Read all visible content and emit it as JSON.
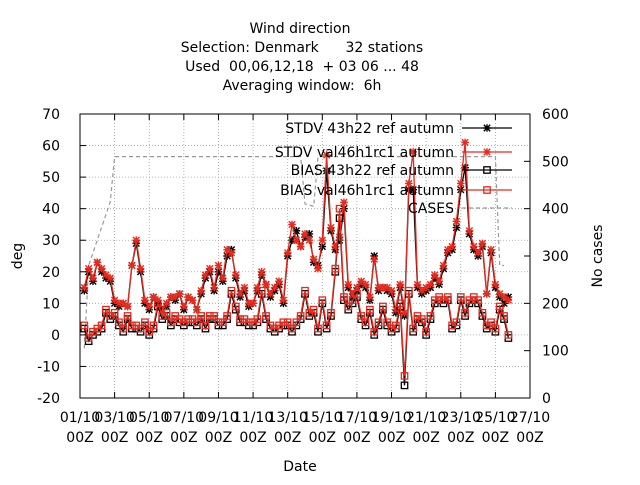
{
  "chart_data": {
    "type": "line",
    "title_lines": [
      "Wind direction",
      "Selection: Denmark      32 stations",
      "Used  00,06,12,18  + 03 06 ... 48",
      "Averaging window:  6h"
    ],
    "xlabel": "Date",
    "ylabel": "deg",
    "y2label": "No cases",
    "x_ticks": [
      {
        "day": 1,
        "line1": "01/10",
        "line2": "00Z"
      },
      {
        "day": 3,
        "line1": "03/10",
        "line2": "00Z"
      },
      {
        "day": 5,
        "line1": "05/10",
        "line2": "00Z"
      },
      {
        "day": 7,
        "line1": "07/10",
        "line2": "00Z"
      },
      {
        "day": 9,
        "line1": "09/10",
        "line2": "00Z"
      },
      {
        "day": 11,
        "line1": "11/10",
        "line2": "00Z"
      },
      {
        "day": 13,
        "line1": "13/10",
        "line2": "00Z"
      },
      {
        "day": 15,
        "line1": "15/10",
        "line2": "00Z"
      },
      {
        "day": 17,
        "line1": "17/10",
        "line2": "00Z"
      },
      {
        "day": 19,
        "line1": "19/10",
        "line2": "00Z"
      },
      {
        "day": 21,
        "line1": "21/10",
        "line2": "00Z"
      },
      {
        "day": 23,
        "line1": "23/10",
        "line2": "00Z"
      },
      {
        "day": 25,
        "line1": "25/10",
        "line2": "00Z"
      },
      {
        "day": 27,
        "line1": "27/10",
        "line2": "00Z"
      }
    ],
    "xlim": [
      1,
      27
    ],
    "ylim": [
      -20,
      70
    ],
    "y_ticks": [
      -20,
      -10,
      0,
      10,
      20,
      30,
      40,
      50,
      60,
      70
    ],
    "y2lim": [
      0,
      600
    ],
    "y2_ticks": [
      0,
      100,
      200,
      300,
      400,
      500,
      600
    ],
    "grid": true,
    "legend_position": "top-right",
    "x_days": [
      1.25,
      1.5,
      1.75,
      2,
      2.25,
      2.5,
      2.75,
      3,
      3.25,
      3.5,
      3.75,
      4,
      4.25,
      4.5,
      4.75,
      5,
      5.25,
      5.5,
      5.75,
      6,
      6.25,
      6.5,
      6.75,
      7,
      7.25,
      7.5,
      7.75,
      8,
      8.25,
      8.5,
      8.75,
      9,
      9.25,
      9.5,
      9.75,
      10,
      10.25,
      10.5,
      10.75,
      11,
      11.25,
      11.5,
      11.75,
      12,
      12.25,
      12.5,
      12.75,
      13,
      13.25,
      13.5,
      13.75,
      14,
      14.25,
      14.5,
      14.75,
      15,
      15.25,
      15.5,
      15.75,
      16,
      16.25,
      16.5,
      16.75,
      17,
      17.25,
      17.5,
      17.75,
      18,
      18.25,
      18.5,
      18.75,
      19,
      19.25,
      19.5,
      19.75,
      20,
      20.25,
      20.5,
      20.75,
      21,
      21.25,
      21.5,
      21.75,
      22,
      22.25,
      22.5,
      22.75,
      23,
      23.25,
      23.5,
      23.75,
      24,
      24.25,
      24.5,
      24.75,
      25,
      25.25,
      25.5,
      25.75
    ],
    "series": [
      {
        "name": "STDV 43h22_ref_autumn",
        "legend_text": "STDV 43h22 ref autumn",
        "axis": "y1",
        "color": "#000000",
        "marker": "star",
        "dash": "",
        "values": [
          14,
          20,
          17,
          23,
          20,
          18,
          17,
          10,
          9,
          10,
          9,
          22,
          29,
          20,
          10,
          8,
          12,
          10,
          8,
          9,
          12,
          11,
          13,
          8,
          12,
          11,
          8,
          13,
          18,
          20,
          14,
          20,
          17,
          25,
          27,
          18,
          12,
          14,
          9,
          10,
          14,
          19,
          16,
          12,
          14,
          16,
          10,
          25,
          30,
          33,
          28,
          31,
          32,
          23,
          22,
          28,
          52,
          33,
          27,
          30,
          40,
          15,
          12,
          14,
          16,
          15,
          11,
          25,
          14,
          15,
          14,
          13,
          7,
          15,
          6,
          46,
          46,
          15,
          13,
          14,
          15,
          18,
          16,
          21,
          26,
          27,
          34,
          46,
          53,
          32,
          27,
          25,
          28,
          13,
          26,
          15,
          12,
          10,
          12
        ]
      },
      {
        "name": "STDV val46h1rc1_autumn",
        "legend_text": "STDV val46h1rc1 autumn",
        "axis": "y1",
        "color": "#e8291c",
        "marker": "star",
        "dash": "",
        "values": [
          15,
          21,
          18,
          23,
          21,
          19,
          18,
          11,
          10,
          10,
          9,
          22,
          30,
          21,
          11,
          9,
          12,
          11,
          8,
          10,
          12,
          12,
          13,
          9,
          12,
          11,
          8,
          14,
          19,
          21,
          15,
          22,
          18,
          27,
          26,
          19,
          13,
          15,
          10,
          10,
          15,
          20,
          16,
          13,
          15,
          17,
          11,
          26,
          35,
          30,
          28,
          32,
          30,
          24,
          21,
          30,
          57,
          34,
          28,
          31,
          42,
          16,
          13,
          15,
          17,
          16,
          12,
          24,
          15,
          15,
          15,
          14,
          8,
          16,
          7,
          48,
          58,
          16,
          14,
          15,
          16,
          19,
          17,
          22,
          27,
          28,
          36,
          48,
          61,
          33,
          28,
          26,
          29,
          13,
          27,
          16,
          13,
          12,
          11
        ]
      },
      {
        "name": "BIAS 43h22_ref_autumn",
        "legend_text": "BIAS 43h22 ref autumn",
        "axis": "y1",
        "color": "#000000",
        "marker": "square",
        "dash": "",
        "values": [
          2,
          -2,
          0,
          1,
          2,
          7,
          5,
          6,
          3,
          1,
          5,
          2,
          2,
          1,
          3,
          0,
          2,
          9,
          5,
          6,
          3,
          5,
          4,
          3,
          4,
          4,
          3,
          5,
          2,
          5,
          5,
          3,
          3,
          5,
          13,
          8,
          4,
          4,
          3,
          3,
          4,
          13,
          5,
          2,
          1,
          2,
          3,
          3,
          1,
          3,
          5,
          13,
          6,
          7,
          1,
          10,
          2,
          6,
          20,
          37,
          11,
          8,
          10,
          12,
          5,
          3,
          7,
          0,
          3,
          8,
          3,
          1,
          2,
          9,
          -16,
          13,
          1,
          5,
          4,
          0,
          5,
          10,
          11,
          10,
          11,
          2,
          3,
          11,
          6,
          10,
          11,
          10,
          6,
          2,
          3,
          1,
          8,
          5,
          -1
        ]
      },
      {
        "name": "BIAS val46h1rc1_autumn",
        "legend_text": "BIAS val46h1rc1 autumn",
        "axis": "y1",
        "color": "#e8291c",
        "marker": "square",
        "dash": "",
        "values": [
          3,
          -1,
          1,
          2,
          3,
          8,
          6,
          7,
          4,
          2,
          6,
          3,
          3,
          2,
          4,
          1,
          3,
          10,
          6,
          7,
          4,
          6,
          5,
          4,
          5,
          5,
          4,
          6,
          3,
          6,
          6,
          4,
          4,
          6,
          14,
          9,
          5,
          5,
          4,
          4,
          5,
          14,
          6,
          3,
          2,
          3,
          4,
          4,
          2,
          4,
          6,
          14,
          7,
          8,
          2,
          11,
          3,
          7,
          21,
          40,
          12,
          9,
          11,
          13,
          6,
          4,
          8,
          1,
          4,
          9,
          4,
          2,
          3,
          10,
          -13,
          14,
          2,
          6,
          5,
          1,
          6,
          11,
          12,
          11,
          12,
          3,
          4,
          12,
          7,
          11,
          12,
          11,
          7,
          3,
          4,
          2,
          9,
          6,
          0
        ]
      },
      {
        "name": "CASES",
        "legend_text": "CASES",
        "axis": "y2",
        "color": "#999999",
        "marker": "none",
        "dash": "4,3",
        "points": [
          [
            1.25,
            105
          ],
          [
            1.5,
            280
          ],
          [
            2.75,
            415
          ],
          [
            3,
            510
          ],
          [
            13.75,
            510
          ],
          [
            14,
            410
          ],
          [
            14.5,
            405
          ],
          [
            14.75,
            510
          ],
          [
            25,
            510
          ],
          [
            25.25,
            280
          ],
          [
            25.5,
            280
          ]
        ]
      }
    ]
  }
}
